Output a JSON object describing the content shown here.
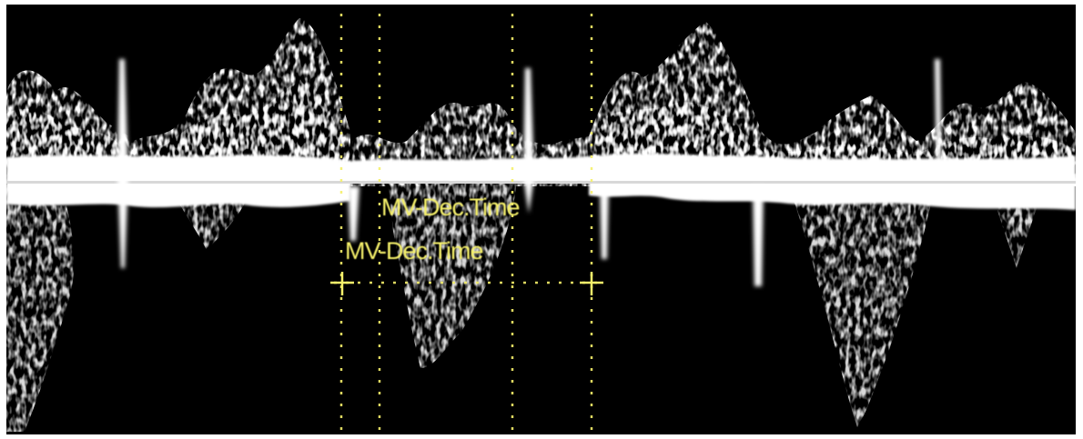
{
  "image": {
    "kind": "spectral-doppler-ultrasound",
    "background_color": "#000000",
    "signal_color": "#ffffff",
    "annotation_color": "#f5f06a"
  },
  "measurements": [
    {
      "label": "MV-Dec.Time"
    },
    {
      "label": "MV-Dec.Time"
    }
  ]
}
